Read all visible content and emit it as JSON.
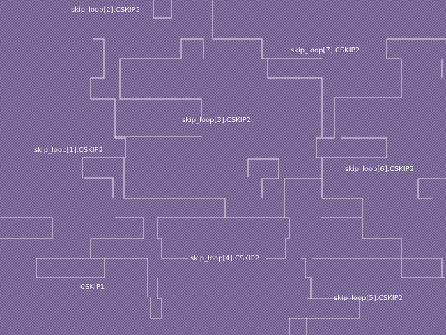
{
  "labels": {
    "l0": "skip_loop[2].CSKIP2",
    "l1": "skip_loop[7].CSKIP2",
    "l2": "skip_loop[3].CSKIP2",
    "l3": "skip_loop[1].CSKIP2",
    "l4": "skip_loop[6].CSKIP2",
    "l5": "skip_loop[4].CSKIP2",
    "l6": "CSKIP1",
    "l7": "skip_loop[5].CSKIP2"
  },
  "colors": {
    "background": "#8a7aa3",
    "dither": "#6a5a8c",
    "trace": "#e8e4f0",
    "label_text": "#ffffff"
  }
}
